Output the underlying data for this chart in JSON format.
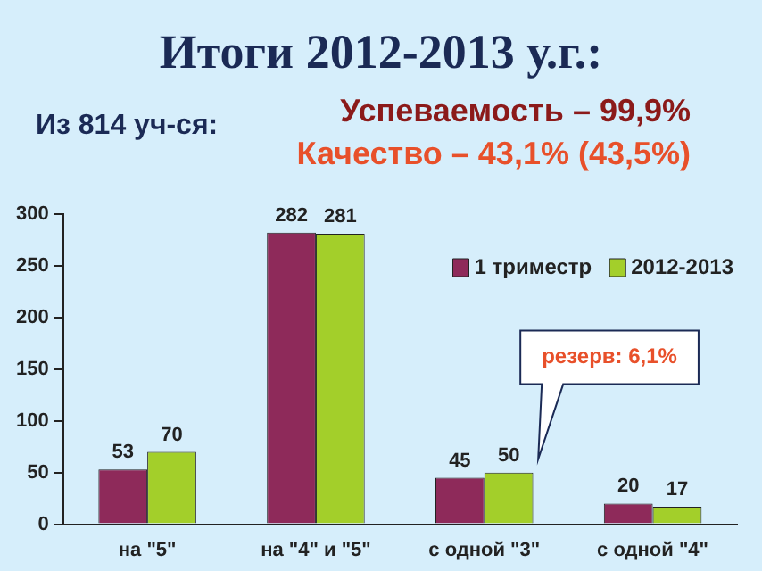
{
  "chart_data": {
    "type": "bar",
    "title": "Итоги 2012-2013 у.г.:",
    "subtitle": "Из 814 уч-ся:",
    "annotations": [
      "Успеваемость – 99,9%",
      "Качество – 43,1% (43,5%)",
      "резерв: 6,1%"
    ],
    "categories": [
      "на \"5\"",
      "на \"4\" и \"5\"",
      "с одной \"3\"",
      "с одной \"4\""
    ],
    "series": [
      {
        "name": "1 триместр",
        "color": "#8e2a5a",
        "values": [
          53,
          282,
          45,
          20
        ]
      },
      {
        "name": "2012-2013",
        "color": "#a3cf2a",
        "values": [
          70,
          281,
          50,
          17
        ]
      }
    ],
    "ylim": [
      0,
      300
    ],
    "yticks": [
      0,
      50,
      100,
      150,
      200,
      250,
      300
    ],
    "grid": false,
    "legend": "top right",
    "data_labels": true
  }
}
